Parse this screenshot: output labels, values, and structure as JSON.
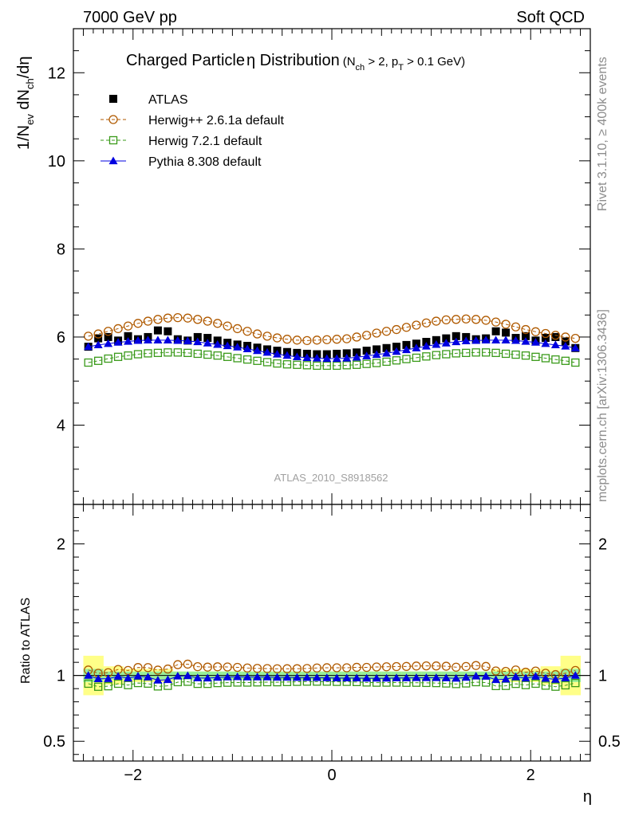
{
  "header": {
    "left": "7000 GeV pp",
    "right": "Soft QCD"
  },
  "side_labels": {
    "rivet": "Rivet 3.1.10, ≥ 400k events",
    "mcplots": "mcplots.cern.ch [arXiv:1306.3436]"
  },
  "watermark": "ATLAS_2010_S8918562",
  "chart_data": {
    "type": "scatter",
    "title_main": "Charged Particle",
    "title_eta": "η",
    "title_rest": " Distribution",
    "title_cond": "(N",
    "title_cond_sub": "ch",
    "title_cond2": " > 2, p",
    "title_cond_sub2": "T",
    "title_cond3": " > 0.1 GeV)",
    "ylabel_main_parts": [
      "1/N",
      "ev",
      " dN",
      "ch",
      "/dη"
    ],
    "ylabel_ratio": "Ratio to ATLAS",
    "xlabel": "η",
    "xlim": [
      -2.6,
      2.6
    ],
    "ylim_main": [
      2.2,
      13.0
    ],
    "ylim_ratio": [
      0.35,
      2.3
    ],
    "x_ticks": [
      -2,
      0,
      2
    ],
    "x_tick_labels": [
      "−2",
      "0",
      "2"
    ],
    "y_ticks_main": [
      4,
      6,
      8,
      10,
      12
    ],
    "y_tick_labels_main": [
      "4",
      "6",
      "8",
      "10",
      "12"
    ],
    "y_ticks_ratio": [
      0.5,
      1,
      2
    ],
    "y_tick_labels_ratio": [
      "0.5",
      "1",
      "2"
    ],
    "x": [
      -2.45,
      -2.35,
      -2.25,
      -2.15,
      -2.05,
      -1.95,
      -1.85,
      -1.75,
      -1.65,
      -1.55,
      -1.45,
      -1.35,
      -1.25,
      -1.15,
      -1.05,
      -0.95,
      -0.85,
      -0.75,
      -0.65,
      -0.55,
      -0.45,
      -0.35,
      -0.25,
      -0.15,
      -0.05,
      0.05,
      0.15,
      0.25,
      0.35,
      0.45,
      0.55,
      0.65,
      0.75,
      0.85,
      0.95,
      1.05,
      1.15,
      1.25,
      1.35,
      1.45,
      1.55,
      1.65,
      1.75,
      1.85,
      1.95,
      2.05,
      2.15,
      2.25,
      2.35,
      2.45
    ],
    "series": [
      {
        "name": "ATLAS",
        "legend": "ATLAS",
        "color": "#000000",
        "marker": "filled-square",
        "values": [
          5.78,
          5.97,
          6.0,
          5.92,
          6.02,
          5.95,
          6.0,
          6.15,
          6.13,
          5.95,
          5.92,
          6.0,
          5.98,
          5.92,
          5.87,
          5.83,
          5.8,
          5.76,
          5.72,
          5.69,
          5.66,
          5.64,
          5.62,
          5.61,
          5.61,
          5.62,
          5.63,
          5.65,
          5.69,
          5.72,
          5.75,
          5.78,
          5.82,
          5.85,
          5.89,
          5.93,
          5.97,
          6.02,
          6.0,
          5.95,
          5.97,
          6.13,
          6.1,
          5.98,
          6.02,
          5.92,
          5.98,
          6.0,
          5.9,
          5.75
        ]
      },
      {
        "name": "Herwig++ 2.6.1a default",
        "legend": "Herwig++ 2.6.1a default",
        "color": "#b05a00",
        "marker": "open-circle",
        "line": "dashed",
        "values": [
          6.02,
          6.07,
          6.13,
          6.19,
          6.25,
          6.31,
          6.36,
          6.4,
          6.43,
          6.44,
          6.43,
          6.4,
          6.36,
          6.31,
          6.25,
          6.19,
          6.13,
          6.07,
          6.02,
          5.98,
          5.95,
          5.93,
          5.92,
          5.93,
          5.94,
          5.95,
          5.96,
          6.0,
          6.04,
          6.09,
          6.13,
          6.17,
          6.22,
          6.27,
          6.32,
          6.36,
          6.39,
          6.4,
          6.41,
          6.4,
          6.38,
          6.34,
          6.29,
          6.23,
          6.17,
          6.12,
          6.08,
          6.04,
          6.0,
          5.97
        ]
      },
      {
        "name": "Herwig 7.2.1 default",
        "legend": "Herwig 7.2.1 default",
        "color": "#3a9a1a",
        "marker": "open-square",
        "line": "dashed",
        "values": [
          5.42,
          5.46,
          5.51,
          5.55,
          5.58,
          5.61,
          5.63,
          5.64,
          5.65,
          5.65,
          5.64,
          5.62,
          5.6,
          5.58,
          5.55,
          5.52,
          5.49,
          5.46,
          5.43,
          5.4,
          5.38,
          5.37,
          5.36,
          5.35,
          5.35,
          5.35,
          5.36,
          5.37,
          5.39,
          5.41,
          5.44,
          5.47,
          5.5,
          5.53,
          5.56,
          5.59,
          5.61,
          5.63,
          5.64,
          5.65,
          5.65,
          5.64,
          5.62,
          5.6,
          5.58,
          5.55,
          5.52,
          5.49,
          5.46,
          5.42
        ]
      },
      {
        "name": "Pythia 8.308 default",
        "legend": "Pythia 8.308 default",
        "color": "#0000e0",
        "marker": "filled-triangle",
        "line": "solid",
        "values": [
          5.78,
          5.82,
          5.85,
          5.88,
          5.9,
          5.92,
          5.93,
          5.93,
          5.93,
          5.92,
          5.91,
          5.89,
          5.86,
          5.83,
          5.8,
          5.77,
          5.73,
          5.69,
          5.65,
          5.61,
          5.58,
          5.55,
          5.53,
          5.52,
          5.51,
          5.51,
          5.52,
          5.54,
          5.57,
          5.6,
          5.63,
          5.67,
          5.71,
          5.75,
          5.79,
          5.83,
          5.86,
          5.89,
          5.91,
          5.92,
          5.93,
          5.93,
          5.93,
          5.92,
          5.9,
          5.88,
          5.85,
          5.82,
          5.79,
          5.75
        ]
      }
    ],
    "ratio_band_colors": {
      "stat": "#99ee99",
      "total": "#ffff88"
    }
  }
}
